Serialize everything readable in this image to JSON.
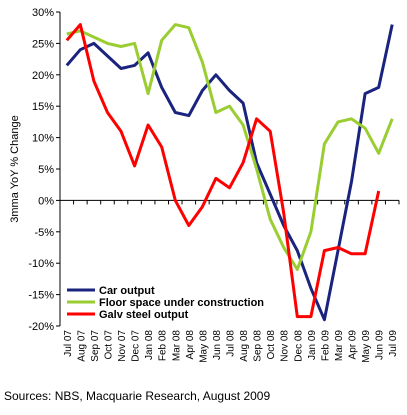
{
  "chart_data": {
    "type": "line",
    "ylabel": "3mma YoY % Change",
    "ylim": [
      -20,
      30
    ],
    "yticks": [
      -20,
      -15,
      -10,
      -5,
      0,
      5,
      10,
      15,
      20,
      25,
      30
    ],
    "ytick_labels": [
      "-20%",
      "-15%",
      "-10%",
      "-5%",
      "0%",
      "5%",
      "10%",
      "15%",
      "20%",
      "25%",
      "30%"
    ],
    "categories": [
      "Jul 07",
      "Aug 07",
      "Sep 07",
      "Oct 07",
      "Nov 07",
      "Dec 07",
      "Jan 08",
      "Feb 08",
      "Mar 08",
      "Apr 08",
      "May 08",
      "Jun 08",
      "Jul 08",
      "Aug 08",
      "Sep 08",
      "Oct 08",
      "Nov 08",
      "Dec 08",
      "Jan 09",
      "Feb 09",
      "Mar 09",
      "Apr 09",
      "May 09",
      "Jun 09",
      "Jul 09"
    ],
    "grid": false,
    "legend_position": "bottom-left",
    "series": [
      {
        "name": "Car output",
        "color": "#1a237e",
        "values": [
          21.5,
          24.0,
          25.0,
          23.0,
          21.0,
          21.5,
          23.5,
          18.0,
          14.0,
          13.5,
          17.5,
          20.0,
          17.5,
          15.5,
          6.0,
          1.0,
          -4.0,
          -8.0,
          -14.0,
          -19.0,
          -8.0,
          3.0,
          17.0,
          18.0,
          28.0
        ]
      },
      {
        "name": "Floor space under construction",
        "color": "#9acd32",
        "values": [
          26.5,
          27.0,
          26.0,
          25.0,
          24.5,
          25.0,
          17.0,
          25.5,
          28.0,
          27.5,
          22.0,
          14.0,
          15.0,
          12.0,
          5.0,
          -3.0,
          -7.5,
          -11.0,
          -5.0,
          9.0,
          12.5,
          13.0,
          11.5,
          7.5,
          13.0
        ]
      },
      {
        "name": "Galv steel output",
        "color": "#ff0000",
        "values": [
          25.5,
          28.0,
          19.0,
          14.0,
          11.0,
          5.5,
          12.0,
          8.5,
          0.0,
          -4.0,
          -1.0,
          3.5,
          2.0,
          6.0,
          13.0,
          11.0,
          -2.0,
          -18.5,
          -18.5,
          -8.0,
          -7.5,
          -8.5,
          -8.5,
          1.5,
          null
        ]
      }
    ]
  },
  "source_text": "Sources: NBS, Macquarie Research, August 2009"
}
